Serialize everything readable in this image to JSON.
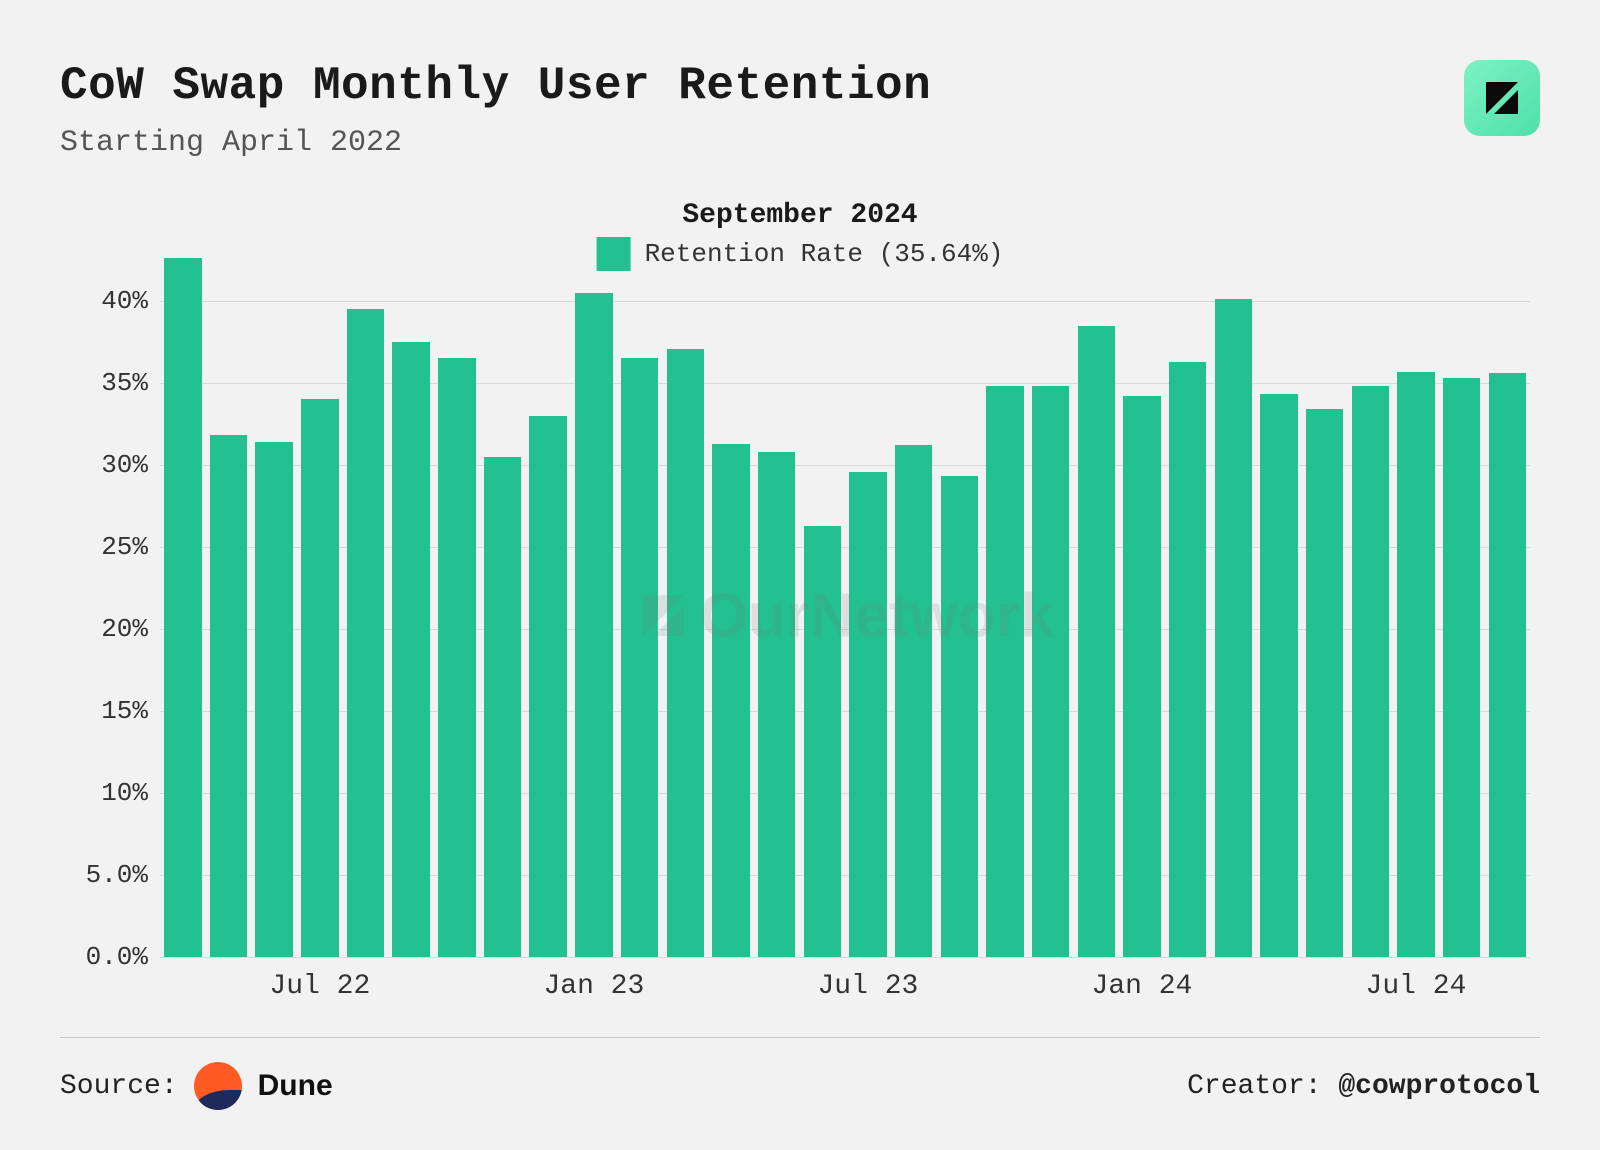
{
  "header": {
    "title": "CoW Swap Monthly User Retention",
    "subtitle": "Starting April 2022"
  },
  "legend": {
    "title": "September 2024",
    "series_label": "Retention Rate (35.64%)",
    "swatch_color": "#23c190"
  },
  "chart": {
    "type": "bar",
    "bar_color": "#23c190",
    "background_color": "#f2f2f2",
    "grid_color": "#d8d8d8",
    "bar_width_ratio": 0.82,
    "ylim": [
      0,
      42.5
    ],
    "yticks": [
      {
        "v": 0,
        "label": "0.0%"
      },
      {
        "v": 5,
        "label": "5.0%"
      },
      {
        "v": 10,
        "label": "10%"
      },
      {
        "v": 15,
        "label": "15%"
      },
      {
        "v": 20,
        "label": "20%"
      },
      {
        "v": 25,
        "label": "25%"
      },
      {
        "v": 30,
        "label": "30%"
      },
      {
        "v": 35,
        "label": "35%"
      },
      {
        "v": 40,
        "label": "40%"
      }
    ],
    "values": [
      42.6,
      31.8,
      31.4,
      34.0,
      39.5,
      37.5,
      36.5,
      30.5,
      33.0,
      40.5,
      36.5,
      37.1,
      31.3,
      30.8,
      26.3,
      29.6,
      31.2,
      29.3,
      34.8,
      34.8,
      38.5,
      34.2,
      36.3,
      40.1,
      34.3,
      33.4,
      34.8,
      35.7,
      35.3,
      35.64
    ],
    "xticks": [
      {
        "index": 3,
        "label": "Jul 22"
      },
      {
        "index": 9,
        "label": "Jan 23"
      },
      {
        "index": 15,
        "label": "Jul 23"
      },
      {
        "index": 21,
        "label": "Jan 24"
      },
      {
        "index": 27,
        "label": "Jul 24"
      }
    ],
    "label_fontsize": 26,
    "tick_fontsize": 28
  },
  "watermark": "OurNetwork",
  "footer": {
    "source_label": "Source:",
    "source_name": "Dune",
    "creator_label": "Creator:",
    "creator_handle": "@cowprotocol"
  }
}
